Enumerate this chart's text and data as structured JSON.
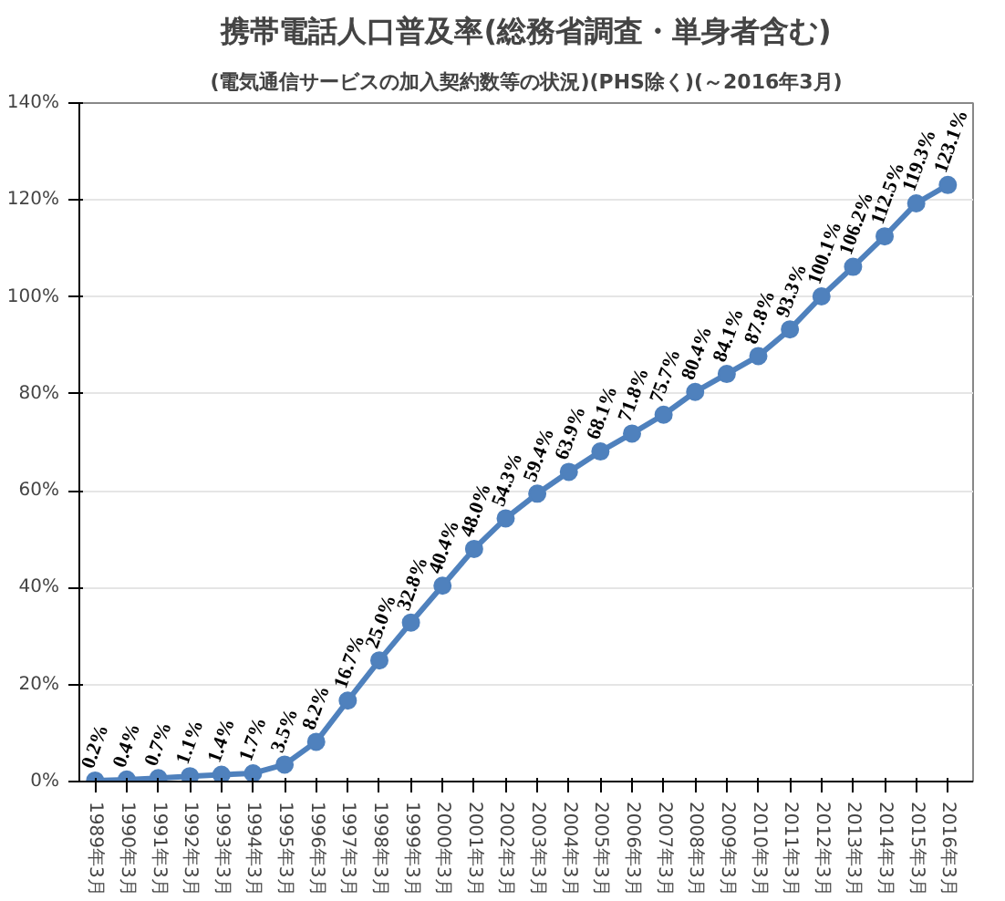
{
  "chart_data": {
    "type": "line",
    "title": "携帯電話人口普及率(総務省調査・単身者含む)",
    "subtitle": "(電気通信サービスの加入契約数等の状況)(PHS除く)(～2016年3月)",
    "categories": [
      "1989年3月",
      "1990年3月",
      "1991年3月",
      "1992年3月",
      "1993年3月",
      "1994年3月",
      "1995年3月",
      "1996年3月",
      "1997年3月",
      "1998年3月",
      "1999年3月",
      "2000年3月",
      "2001年3月",
      "2002年3月",
      "2003年3月",
      "2004年3月",
      "2005年3月",
      "2006年3月",
      "2007年3月",
      "2008年3月",
      "2009年3月",
      "2010年3月",
      "2011年3月",
      "2012年3月",
      "2013年3月",
      "2014年3月",
      "2015年3月",
      "2016年3月"
    ],
    "series": [
      {
        "color": "#4f81bd",
        "values": [
          0.2,
          0.4,
          0.7,
          1.1,
          1.4,
          1.7,
          3.5,
          8.2,
          16.7,
          25.0,
          32.8,
          40.4,
          48.0,
          54.3,
          59.4,
          63.9,
          68.1,
          71.8,
          75.7,
          80.4,
          84.1,
          87.8,
          93.3,
          100.1,
          106.2,
          112.5,
          119.3,
          123.1
        ],
        "value_labels": [
          "0.2%",
          "0.4%",
          "0.7%",
          "1.1%",
          "1.4%",
          "1.7%",
          "3.5%",
          "8.2%",
          "16.7%",
          "25.0%",
          "32.8%",
          "40.4%",
          "48.0%",
          "54.3%",
          "59.4%",
          "63.9%",
          "68.1%",
          "71.8%",
          "75.7%",
          "80.4%",
          "84.1%",
          "87.8%",
          "93.3%",
          "100.1%",
          "106.2%",
          "112.5%",
          "119.3%",
          "123.1%"
        ]
      }
    ],
    "ylim": [
      0,
      140
    ],
    "yticks": [
      {
        "value": 0,
        "label": "0%"
      },
      {
        "value": 20,
        "label": "20%"
      },
      {
        "value": 40,
        "label": "40%"
      },
      {
        "value": 60,
        "label": "60%"
      },
      {
        "value": 80,
        "label": "80%"
      },
      {
        "value": 100,
        "label": "100%"
      },
      {
        "value": 120,
        "label": "120%"
      },
      {
        "value": 140,
        "label": "140%"
      }
    ],
    "grid": "y",
    "marker": "circle",
    "line_style": "solid"
  }
}
